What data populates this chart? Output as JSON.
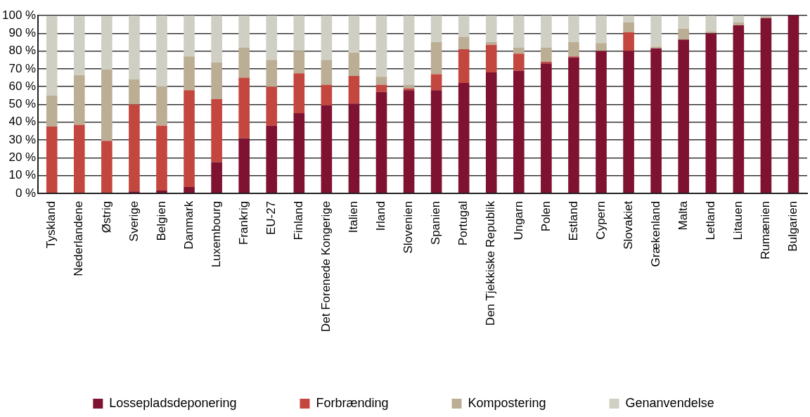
{
  "chart_data": {
    "type": "bar",
    "stacked": true,
    "grid": "y",
    "legend": "bottom",
    "categories": [
      "Tyskland",
      "Nederlandene",
      "Østrig",
      "Sverige",
      "Belgien",
      "Danmark",
      "Luxembourg",
      "Frankrig",
      "EU-27",
      "Finland",
      "Det Forenede Kongerige",
      "Italien",
      "Irland",
      "Slovenien",
      "Spanien",
      "Portugal",
      "Den Tjekkiske Republik",
      "Ungarn",
      "Polen",
      "Estland",
      "Cypern",
      "Slovakiet",
      "Grækenland",
      "Malta",
      "Letland",
      "Litauen",
      "Rumænien",
      "Bulgarien"
    ],
    "ylim": [
      0,
      100
    ],
    "yticks": [
      {
        "value": 0,
        "label": "0 %"
      },
      {
        "value": 10,
        "label": "10 %"
      },
      {
        "value": 20,
        "label": "20 %"
      },
      {
        "value": 30,
        "label": "30 %"
      },
      {
        "value": 40,
        "label": "40 %"
      },
      {
        "value": 50,
        "label": "50 %"
      },
      {
        "value": 60,
        "label": "60 %"
      },
      {
        "value": 70,
        "label": "70 %"
      },
      {
        "value": 80,
        "label": "80 %"
      },
      {
        "value": 90,
        "label": "90 %"
      },
      {
        "value": 100,
        "label": "100 %"
      }
    ],
    "series": [
      {
        "name": "Lossepladsdeponering",
        "color": "#7f1230",
        "values": [
          null,
          null,
          null,
          1,
          1.5,
          3.5,
          17.5,
          31,
          38,
          45,
          49.5,
          50.5,
          57,
          58,
          58,
          62,
          68,
          69,
          73,
          76.5,
          80,
          80,
          81.5,
          86.5,
          90,
          94.5,
          98.5,
          100
        ]
      },
      {
        "name": "Forbrænding",
        "color": "#c4473f",
        "values": [
          37.5,
          38.5,
          29.5,
          49,
          36.5,
          54.5,
          35.5,
          34,
          22,
          22.5,
          11.5,
          15.5,
          4,
          1,
          9,
          19,
          15.5,
          9.5,
          1,
          0.5,
          0,
          10.5,
          0,
          0,
          0,
          0,
          0,
          0
        ]
      },
      {
        "name": "Kompostering",
        "color": "#bbae94",
        "values": [
          17.5,
          28,
          40,
          14,
          22,
          19,
          20.5,
          17,
          15,
          12.5,
          14,
          13,
          4.5,
          2,
          18,
          7,
          1.5,
          3.5,
          8,
          8,
          4.5,
          5.5,
          1,
          6,
          1,
          1.5,
          1,
          0
        ]
      },
      {
        "name": "Genanvendelse",
        "color": "#d0cfc3",
        "values": [
          44.5,
          33,
          30,
          36,
          40,
          23,
          26.5,
          18,
          25,
          20,
          25,
          21,
          34.5,
          39,
          15,
          12,
          15,
          18,
          18,
          15,
          15.5,
          4,
          17.5,
          7.5,
          9,
          4,
          null,
          0
        ]
      }
    ]
  }
}
